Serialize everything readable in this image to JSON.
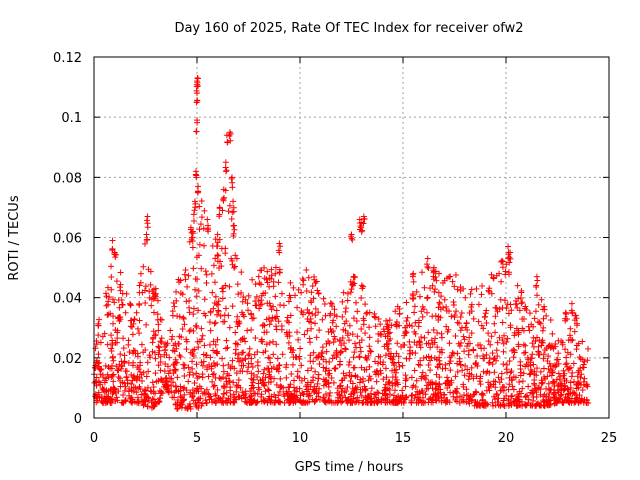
{
  "chart_data": {
    "type": "scatter",
    "title": "Day 160 of 2025, Rate Of TEC Index for receiver ofw2",
    "xlabel": "GPS time / hours",
    "ylabel": "ROTI / TECUs",
    "xlim": [
      0,
      25
    ],
    "ylim": [
      0,
      0.12
    ],
    "xticks": [
      0,
      5,
      10,
      15,
      20,
      25
    ],
    "xtick_labels": [
      "0",
      "5",
      "10",
      "15",
      "20",
      "25"
    ],
    "yticks": [
      0,
      0.02,
      0.04,
      0.06,
      0.08,
      0.1,
      0.12
    ],
    "ytick_labels": [
      "0",
      "0.02",
      "0.04",
      "0.06",
      "0.08",
      "0.1",
      "0.12"
    ],
    "grid": true,
    "marker": "+",
    "color": "#ff0000",
    "x_extent_hours": [
      0,
      24
    ],
    "series": [
      {
        "name": "ROTI",
        "envelope": [
          [
            0.0,
            0.005,
            0.03
          ],
          [
            0.5,
            0.005,
            0.04
          ],
          [
            1.0,
            0.005,
            0.056
          ],
          [
            1.5,
            0.005,
            0.045
          ],
          [
            2.0,
            0.005,
            0.035
          ],
          [
            2.5,
            0.004,
            0.062
          ],
          [
            3.0,
            0.003,
            0.044
          ],
          [
            3.5,
            0.01,
            0.025
          ],
          [
            4.0,
            0.003,
            0.045
          ],
          [
            4.5,
            0.003,
            0.055
          ],
          [
            5.0,
            0.003,
            0.08
          ],
          [
            5.5,
            0.005,
            0.066
          ],
          [
            6.0,
            0.005,
            0.06
          ],
          [
            6.5,
            0.005,
            0.082
          ],
          [
            7.0,
            0.005,
            0.05
          ],
          [
            7.5,
            0.005,
            0.045
          ],
          [
            8.0,
            0.005,
            0.05
          ],
          [
            8.5,
            0.005,
            0.05
          ],
          [
            9.0,
            0.005,
            0.055
          ],
          [
            9.5,
            0.005,
            0.045
          ],
          [
            10.0,
            0.005,
            0.045
          ],
          [
            10.5,
            0.005,
            0.055
          ],
          [
            11.0,
            0.005,
            0.045
          ],
          [
            11.5,
            0.005,
            0.04
          ],
          [
            12.0,
            0.005,
            0.04
          ],
          [
            12.5,
            0.005,
            0.048
          ],
          [
            13.0,
            0.005,
            0.045
          ],
          [
            13.5,
            0.005,
            0.035
          ],
          [
            14.0,
            0.005,
            0.035
          ],
          [
            14.5,
            0.005,
            0.035
          ],
          [
            15.0,
            0.005,
            0.04
          ],
          [
            15.5,
            0.005,
            0.045
          ],
          [
            16.0,
            0.005,
            0.052
          ],
          [
            16.5,
            0.005,
            0.05
          ],
          [
            17.0,
            0.005,
            0.05
          ],
          [
            17.5,
            0.005,
            0.048
          ],
          [
            18.0,
            0.005,
            0.045
          ],
          [
            18.5,
            0.004,
            0.045
          ],
          [
            19.0,
            0.004,
            0.045
          ],
          [
            19.5,
            0.004,
            0.05
          ],
          [
            20.0,
            0.004,
            0.055
          ],
          [
            20.5,
            0.004,
            0.045
          ],
          [
            21.0,
            0.004,
            0.04
          ],
          [
            21.5,
            0.004,
            0.043
          ],
          [
            22.0,
            0.004,
            0.035
          ],
          [
            22.5,
            0.005,
            0.03
          ],
          [
            23.0,
            0.005,
            0.035
          ],
          [
            23.5,
            0.005,
            0.035
          ],
          [
            24.0,
            0.005,
            0.025
          ]
        ],
        "outliers": [
          [
            0.9,
            0.059
          ],
          [
            1.0,
            0.055
          ],
          [
            2.6,
            0.067
          ],
          [
            2.55,
            0.061
          ],
          [
            3.0,
            0.043
          ],
          [
            4.8,
            0.062
          ],
          [
            4.9,
            0.072
          ],
          [
            5.0,
            0.112
          ],
          [
            5.02,
            0.113
          ],
          [
            5.0,
            0.108
          ],
          [
            5.0,
            0.099
          ],
          [
            4.95,
            0.082
          ],
          [
            5.05,
            0.077
          ],
          [
            5.5,
            0.066
          ],
          [
            6.0,
            0.061
          ],
          [
            6.1,
            0.07
          ],
          [
            6.3,
            0.076
          ],
          [
            6.4,
            0.085
          ],
          [
            6.45,
            0.094
          ],
          [
            6.6,
            0.095
          ],
          [
            6.7,
            0.08
          ],
          [
            6.75,
            0.072
          ],
          [
            6.8,
            0.064
          ],
          [
            9.0,
            0.058
          ],
          [
            12.5,
            0.061
          ],
          [
            12.9,
            0.066
          ],
          [
            13.0,
            0.065
          ],
          [
            13.1,
            0.067
          ],
          [
            12.6,
            0.047
          ],
          [
            15.5,
            0.048
          ],
          [
            16.2,
            0.053
          ],
          [
            16.5,
            0.05
          ],
          [
            20.1,
            0.057
          ],
          [
            20.2,
            0.055
          ],
          [
            21.5,
            0.047
          ],
          [
            23.2,
            0.038
          ],
          [
            22.9,
            0.035
          ]
        ]
      }
    ]
  }
}
